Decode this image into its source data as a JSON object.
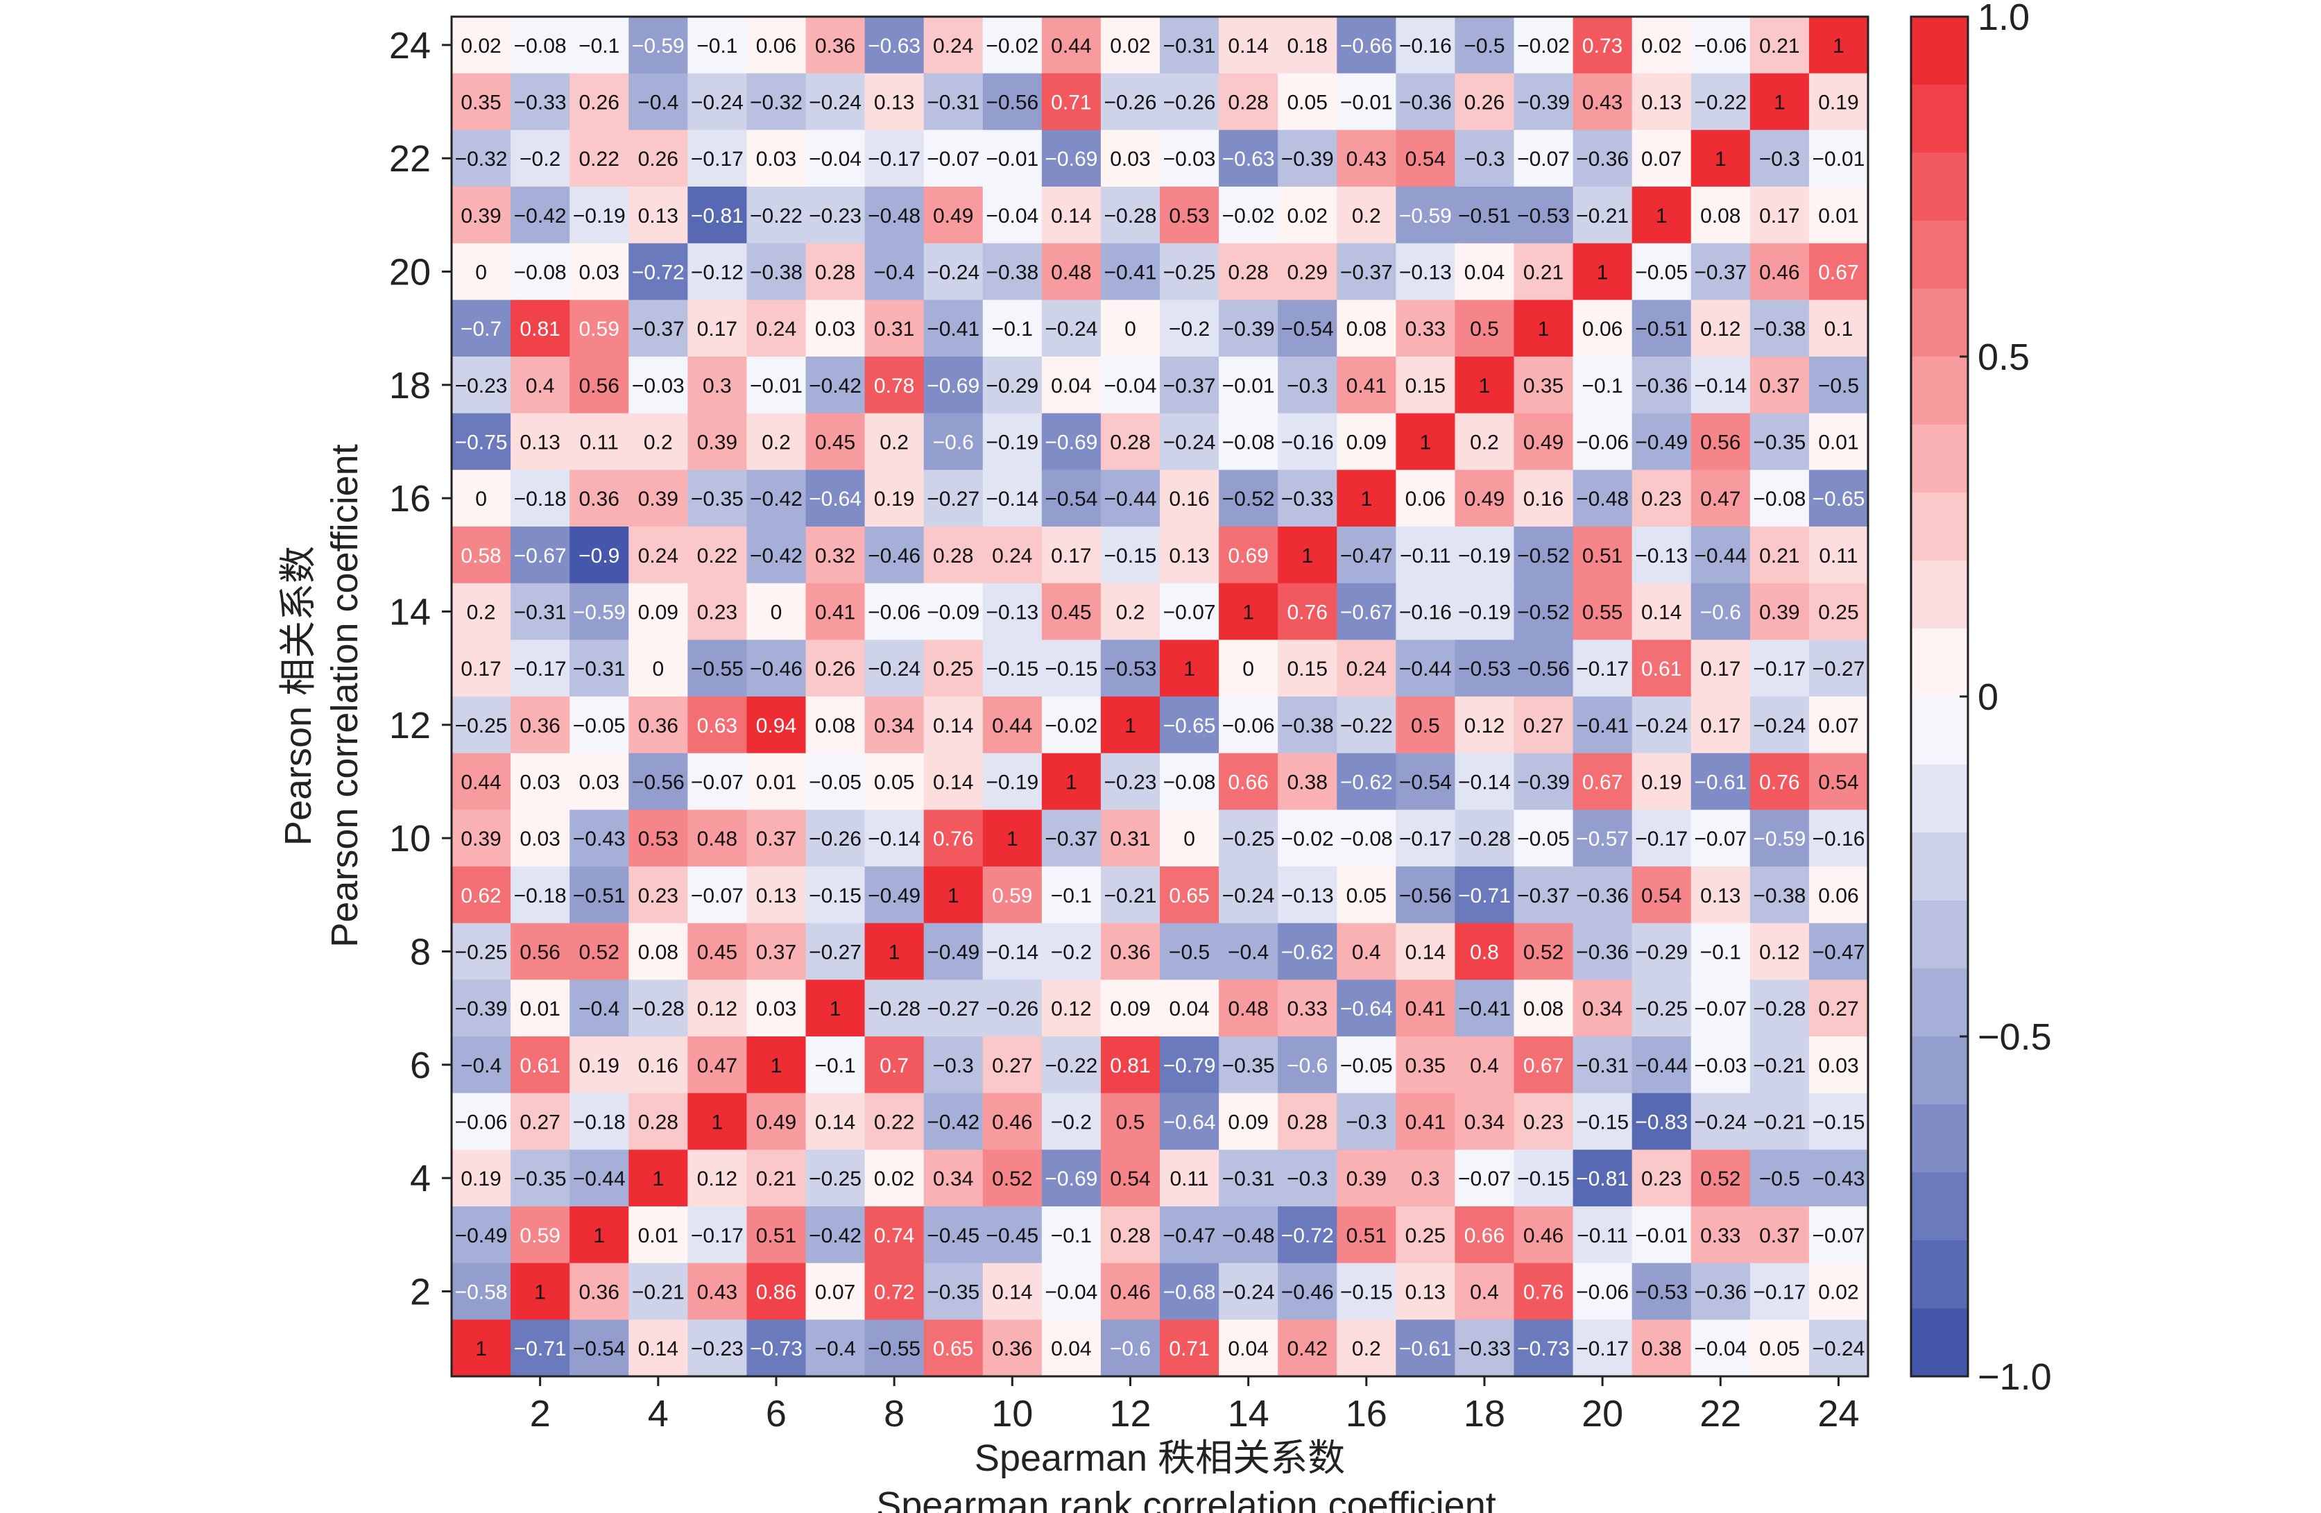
{
  "chart_data": {
    "type": "heatmap",
    "title": "",
    "xlabel": "Spearman 秩相关系数",
    "xlabel_en": "Spearman rank correlation coefficient",
    "ylabel": "Pearson 相关系数",
    "ylabel_en": "Pearson correlation coefficient",
    "x_ticks": [
      2,
      4,
      6,
      8,
      10,
      12,
      14,
      16,
      18,
      20,
      22,
      24
    ],
    "y_ticks": [
      2,
      4,
      6,
      8,
      10,
      12,
      14,
      16,
      18,
      20,
      22,
      24
    ],
    "xlim": [
      1,
      24
    ],
    "ylim": [
      1,
      24
    ],
    "colorbar": {
      "range": [
        -1.0,
        1.0
      ],
      "ticks": [
        "1.0",
        "0.5",
        "0",
        "−0.5",
        "−1.0"
      ],
      "tick_values": [
        1,
        0.5,
        0,
        -0.5,
        -1
      ],
      "levels": 20,
      "low_color": "#3a4ea6",
      "mid_color": "#ffffff",
      "high_color": "#ed2128"
    },
    "rows_top_to_bottom_y24_to_y1": [
      [
        0.02,
        -0.08,
        -0.1,
        -0.59,
        -0.1,
        0.06,
        0.36,
        -0.63,
        0.24,
        -0.02,
        0.44,
        0.02,
        -0.31,
        0.14,
        0.18,
        -0.66,
        -0.16,
        -0.5,
        -0.02,
        0.73,
        0.02,
        -0.06,
        0.21,
        1
      ],
      [
        0.35,
        -0.33,
        0.26,
        -0.4,
        -0.24,
        -0.32,
        -0.24,
        0.13,
        -0.31,
        -0.56,
        0.71,
        -0.26,
        -0.26,
        0.28,
        0.05,
        -0.01,
        -0.36,
        0.26,
        -0.39,
        0.43,
        0.13,
        -0.22,
        1,
        0.19
      ],
      [
        -0.32,
        -0.2,
        0.22,
        0.26,
        -0.17,
        0.03,
        -0.04,
        -0.17,
        -0.07,
        -0.01,
        -0.69,
        0.03,
        -0.03,
        -0.63,
        -0.39,
        0.43,
        0.54,
        -0.3,
        -0.07,
        -0.36,
        0.07,
        1,
        -0.3,
        -0.01
      ],
      [
        0.39,
        -0.42,
        -0.19,
        0.13,
        -0.81,
        -0.22,
        -0.23,
        -0.48,
        0.49,
        -0.04,
        0.14,
        -0.28,
        0.53,
        -0.02,
        0.02,
        0.2,
        -0.59,
        -0.51,
        -0.53,
        -0.21,
        1,
        0.08,
        0.17,
        0.01
      ],
      [
        0,
        -0.08,
        0.03,
        -0.72,
        -0.12,
        -0.38,
        0.28,
        -0.4,
        -0.24,
        -0.38,
        0.48,
        -0.41,
        -0.25,
        0.28,
        0.29,
        -0.37,
        -0.13,
        0.04,
        0.21,
        1,
        -0.05,
        -0.37,
        0.46,
        0.67
      ],
      [
        -0.7,
        0.81,
        0.59,
        -0.37,
        0.17,
        0.24,
        0.03,
        0.31,
        -0.41,
        -0.1,
        -0.24,
        0,
        -0.2,
        -0.39,
        -0.54,
        0.08,
        0.33,
        0.5,
        1,
        0.06,
        -0.51,
        0.12,
        -0.38,
        0.1
      ],
      [
        -0.23,
        0.4,
        0.56,
        -0.03,
        0.3,
        -0.01,
        -0.42,
        0.78,
        -0.69,
        -0.29,
        0.04,
        -0.04,
        -0.37,
        -0.01,
        -0.3,
        0.41,
        0.15,
        1,
        0.35,
        -0.1,
        -0.36,
        -0.14,
        0.37,
        -0.5
      ],
      [
        -0.75,
        0.13,
        0.11,
        0.2,
        0.39,
        0.2,
        0.45,
        0.2,
        -0.6,
        -0.19,
        -0.69,
        0.28,
        -0.24,
        -0.08,
        -0.16,
        0.09,
        1,
        0.2,
        0.49,
        -0.06,
        -0.49,
        0.56,
        -0.35,
        0.01
      ],
      [
        0,
        -0.18,
        0.36,
        0.39,
        -0.35,
        -0.42,
        -0.64,
        0.19,
        -0.27,
        -0.14,
        -0.54,
        -0.44,
        0.16,
        -0.52,
        -0.33,
        1,
        0.06,
        0.49,
        0.16,
        -0.48,
        0.23,
        0.47,
        -0.08,
        -0.65
      ],
      [
        0.58,
        -0.67,
        -0.9,
        0.24,
        0.22,
        -0.42,
        0.32,
        -0.46,
        0.28,
        0.24,
        0.17,
        -0.15,
        0.13,
        0.69,
        1,
        -0.47,
        -0.11,
        -0.19,
        -0.52,
        0.51,
        -0.13,
        -0.44,
        0.21,
        0.11
      ],
      [
        0.2,
        -0.31,
        -0.59,
        0.09,
        0.23,
        0,
        0.41,
        -0.06,
        -0.09,
        -0.13,
        0.45,
        0.2,
        -0.07,
        1,
        0.76,
        -0.67,
        -0.16,
        -0.19,
        -0.52,
        0.55,
        0.14,
        -0.6,
        0.39,
        0.25
      ],
      [
        0.17,
        -0.17,
        -0.31,
        0,
        -0.55,
        -0.46,
        0.26,
        -0.24,
        0.25,
        -0.15,
        -0.15,
        -0.53,
        1,
        0,
        0.15,
        0.24,
        -0.44,
        -0.53,
        -0.56,
        -0.17,
        0.61,
        0.17,
        -0.17,
        -0.27
      ],
      [
        -0.25,
        0.36,
        -0.05,
        0.36,
        0.63,
        0.94,
        0.08,
        0.34,
        0.14,
        0.44,
        -0.02,
        1,
        -0.65,
        -0.06,
        -0.38,
        -0.22,
        0.5,
        0.12,
        0.27,
        -0.41,
        -0.24,
        0.17,
        -0.24,
        0.07
      ],
      [
        0.44,
        0.03,
        0.03,
        -0.56,
        -0.07,
        0.01,
        -0.05,
        0.05,
        0.14,
        -0.19,
        1,
        -0.23,
        -0.08,
        0.66,
        0.38,
        -0.62,
        -0.54,
        -0.14,
        -0.39,
        0.67,
        0.19,
        -0.61,
        0.76,
        0.54
      ],
      [
        0.39,
        0.03,
        -0.43,
        0.53,
        0.48,
        0.37,
        -0.26,
        -0.14,
        0.76,
        1,
        -0.37,
        0.31,
        0,
        -0.25,
        -0.02,
        -0.08,
        -0.17,
        -0.28,
        -0.05,
        -0.57,
        -0.17,
        -0.07,
        -0.59,
        -0.16
      ],
      [
        0.62,
        -0.18,
        -0.51,
        0.23,
        -0.07,
        0.13,
        -0.15,
        -0.49,
        1,
        0.59,
        -0.1,
        -0.21,
        0.65,
        -0.24,
        -0.13,
        0.05,
        -0.56,
        -0.71,
        -0.37,
        -0.36,
        0.54,
        0.13,
        -0.38,
        0.06
      ],
      [
        -0.25,
        0.56,
        0.52,
        0.08,
        0.45,
        0.37,
        -0.27,
        1,
        -0.49,
        -0.14,
        -0.2,
        0.36,
        -0.5,
        -0.4,
        -0.62,
        0.4,
        0.14,
        0.8,
        0.52,
        -0.36,
        -0.29,
        -0.1,
        0.12,
        -0.47
      ],
      [
        -0.39,
        0.01,
        -0.4,
        -0.28,
        0.12,
        0.03,
        1,
        -0.28,
        -0.27,
        -0.26,
        0.12,
        0.09,
        0.04,
        0.48,
        0.33,
        -0.64,
        0.41,
        -0.41,
        0.08,
        0.34,
        -0.25,
        -0.07,
        -0.28,
        0.27
      ],
      [
        -0.4,
        0.61,
        0.19,
        0.16,
        0.47,
        1,
        -0.1,
        0.7,
        -0.3,
        0.27,
        -0.22,
        0.81,
        -0.79,
        -0.35,
        -0.6,
        -0.05,
        0.35,
        0.4,
        0.67,
        -0.31,
        -0.44,
        -0.03,
        -0.21,
        0.03
      ],
      [
        -0.06,
        0.27,
        -0.18,
        0.28,
        1,
        0.49,
        0.14,
        0.22,
        -0.42,
        0.46,
        -0.2,
        0.5,
        -0.64,
        0.09,
        0.28,
        -0.3,
        0.41,
        0.34,
        0.23,
        -0.15,
        -0.83,
        -0.24,
        -0.21,
        -0.15
      ],
      [
        0.19,
        -0.35,
        -0.44,
        1,
        0.12,
        0.21,
        -0.25,
        0.02,
        0.34,
        0.52,
        -0.69,
        0.54,
        0.11,
        -0.31,
        -0.3,
        0.39,
        0.3,
        -0.07,
        -0.15,
        -0.81,
        0.23,
        0.52,
        -0.5,
        -0.43
      ],
      [
        -0.49,
        0.59,
        1,
        0.01,
        -0.17,
        0.51,
        -0.42,
        0.74,
        -0.45,
        -0.45,
        -0.1,
        0.28,
        -0.47,
        -0.48,
        -0.72,
        0.51,
        0.25,
        0.66,
        0.46,
        -0.11,
        -0.01,
        0.33,
        0.37,
        -0.07
      ],
      [
        -0.58,
        1,
        0.36,
        -0.21,
        0.43,
        0.86,
        0.07,
        0.72,
        -0.35,
        0.14,
        -0.04,
        0.46,
        -0.68,
        -0.24,
        -0.46,
        -0.15,
        0.13,
        0.4,
        0.76,
        -0.06,
        -0.53,
        -0.36,
        -0.17,
        0.02
      ],
      [
        1,
        -0.71,
        -0.54,
        0.14,
        -0.23,
        -0.73,
        -0.4,
        -0.55,
        0.65,
        0.36,
        0.04,
        -0.6,
        0.71,
        0.04,
        0.42,
        0.2,
        -0.61,
        -0.33,
        -0.73,
        -0.17,
        0.38,
        -0.04,
        0.05,
        -0.24
      ]
    ]
  }
}
